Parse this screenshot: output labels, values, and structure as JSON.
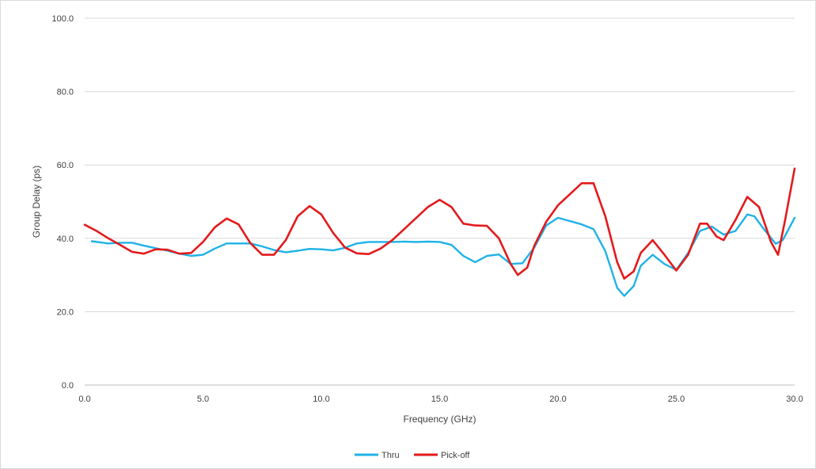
{
  "chart_data": {
    "type": "line",
    "title": "",
    "xlabel": "Frequency (GHz)",
    "ylabel": "Group Delay (ps)",
    "xlim": [
      0,
      30
    ],
    "ylim": [
      0,
      100
    ],
    "x_ticks": [
      "0.0",
      "5.0",
      "10.0",
      "15.0",
      "20.0",
      "25.0",
      "30.0"
    ],
    "y_ticks": [
      "0.0",
      "20.0",
      "40.0",
      "60.0",
      "80.0",
      "100.0"
    ],
    "grid": "horizontal",
    "legend_position": "bottom",
    "series": [
      {
        "name": "Thru",
        "color": "#1fb2e6",
        "points": [
          [
            0.3,
            39.2
          ],
          [
            1,
            38.6
          ],
          [
            1.5,
            38.8
          ],
          [
            2,
            38.8
          ],
          [
            2.5,
            38.0
          ],
          [
            3,
            37.3
          ],
          [
            3.5,
            36.6
          ],
          [
            4,
            35.8
          ],
          [
            4.5,
            35.2
          ],
          [
            5,
            35.5
          ],
          [
            5.5,
            37.2
          ],
          [
            6,
            38.6
          ],
          [
            7,
            38.6
          ],
          [
            7.5,
            37.8
          ],
          [
            8,
            36.8
          ],
          [
            8.5,
            36.2
          ],
          [
            9,
            36.6
          ],
          [
            9.5,
            37.1
          ],
          [
            10,
            37.0
          ],
          [
            10.5,
            36.7
          ],
          [
            11,
            37.4
          ],
          [
            11.5,
            38.6
          ],
          [
            12,
            39.0
          ],
          [
            13,
            39.0
          ],
          [
            13.5,
            39.1
          ],
          [
            14,
            39.0
          ],
          [
            14.5,
            39.1
          ],
          [
            15,
            39.0
          ],
          [
            15.5,
            38.2
          ],
          [
            16,
            35.2
          ],
          [
            16.5,
            33.5
          ],
          [
            17,
            35.2
          ],
          [
            17.5,
            35.6
          ],
          [
            18,
            33.0
          ],
          [
            18.5,
            33.2
          ],
          [
            19,
            37.5
          ],
          [
            19.5,
            43.5
          ],
          [
            20,
            45.6
          ],
          [
            21,
            43.8
          ],
          [
            21.5,
            42.5
          ],
          [
            22,
            36.5
          ],
          [
            22.5,
            26.5
          ],
          [
            22.8,
            24.3
          ],
          [
            23.2,
            27.0
          ],
          [
            23.5,
            32.5
          ],
          [
            24,
            35.5
          ],
          [
            24.5,
            33.0
          ],
          [
            25,
            31.4
          ],
          [
            25.5,
            36.0
          ],
          [
            26,
            42.0
          ],
          [
            26.5,
            43.2
          ],
          [
            27,
            41.0
          ],
          [
            27.5,
            42.0
          ],
          [
            28,
            46.5
          ],
          [
            28.3,
            46.0
          ],
          [
            28.7,
            42.5
          ],
          [
            29.2,
            38.5
          ],
          [
            29.5,
            39.5
          ],
          [
            30,
            45.6
          ]
        ]
      },
      {
        "name": "Pick-off",
        "color": "#e31a1c",
        "points": [
          [
            0,
            43.7
          ],
          [
            0.5,
            42.0
          ],
          [
            1,
            40.0
          ],
          [
            1.5,
            38.2
          ],
          [
            2,
            36.3
          ],
          [
            2.5,
            35.8
          ],
          [
            3,
            37.0
          ],
          [
            3.5,
            36.9
          ],
          [
            4,
            35.8
          ],
          [
            4.5,
            36.0
          ],
          [
            5,
            39.0
          ],
          [
            5.5,
            43.0
          ],
          [
            6,
            45.4
          ],
          [
            6.5,
            43.8
          ],
          [
            7,
            38.7
          ],
          [
            7.5,
            35.5
          ],
          [
            8,
            35.5
          ],
          [
            8.5,
            39.5
          ],
          [
            9,
            46.0
          ],
          [
            9.5,
            48.8
          ],
          [
            10,
            46.5
          ],
          [
            10.5,
            41.5
          ],
          [
            11,
            37.5
          ],
          [
            11.5,
            35.9
          ],
          [
            12,
            35.7
          ],
          [
            12.5,
            37.2
          ],
          [
            13,
            39.5
          ],
          [
            13.5,
            42.5
          ],
          [
            14,
            45.5
          ],
          [
            14.5,
            48.5
          ],
          [
            15,
            50.5
          ],
          [
            15.5,
            48.5
          ],
          [
            16,
            44.0
          ],
          [
            16.5,
            43.5
          ],
          [
            17,
            43.4
          ],
          [
            17.5,
            40.0
          ],
          [
            18,
            33.0
          ],
          [
            18.3,
            30.0
          ],
          [
            18.7,
            32.0
          ],
          [
            19,
            38.0
          ],
          [
            19.5,
            44.5
          ],
          [
            20,
            49.0
          ],
          [
            20.5,
            52.0
          ],
          [
            21,
            55.0
          ],
          [
            21.5,
            55.0
          ],
          [
            22,
            46.0
          ],
          [
            22.5,
            33.5
          ],
          [
            22.8,
            29.0
          ],
          [
            23.2,
            31.0
          ],
          [
            23.5,
            36.0
          ],
          [
            24,
            39.5
          ],
          [
            24.5,
            35.5
          ],
          [
            25,
            31.2
          ],
          [
            25.5,
            35.5
          ],
          [
            26,
            44.0
          ],
          [
            26.3,
            44.0
          ],
          [
            26.7,
            40.5
          ],
          [
            27,
            39.5
          ],
          [
            27.5,
            45.0
          ],
          [
            28,
            51.3
          ],
          [
            28.5,
            48.5
          ],
          [
            29,
            39.0
          ],
          [
            29.3,
            35.5
          ],
          [
            29.6,
            45.0
          ],
          [
            30,
            59.0
          ]
        ]
      }
    ]
  }
}
